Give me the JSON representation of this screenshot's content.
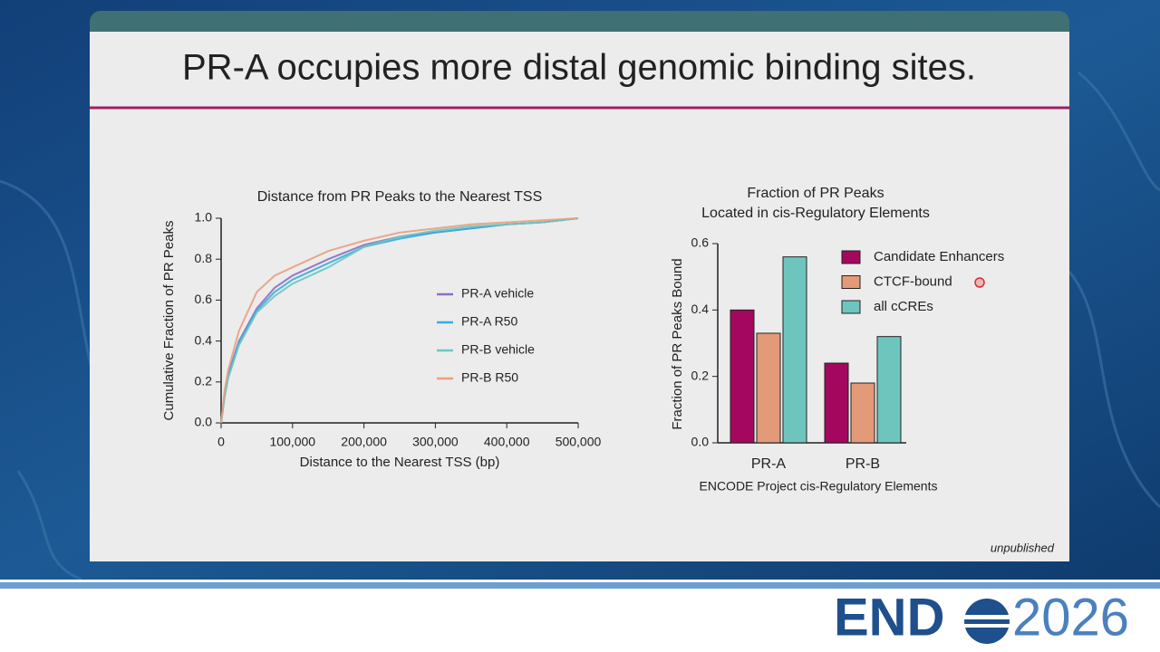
{
  "slide": {
    "title": "PR-A occupies more distal genomic binding sites.",
    "note": "unpublished"
  },
  "footer": {
    "logo_text": "END",
    "year": "2026"
  },
  "chart_data": [
    {
      "type": "line",
      "title": "Distance from PR Peaks to the Nearest TSS",
      "xlabel": "Distance to the Nearest TSS (bp)",
      "ylabel": "Cumulative Fraction of PR Peaks",
      "x": [
        0,
        5000,
        10000,
        25000,
        50000,
        75000,
        100000,
        150000,
        200000,
        250000,
        300000,
        350000,
        400000,
        450000,
        500000
      ],
      "series": [
        {
          "name": "PR-A vehicle",
          "color": "#8a6fc2",
          "values": [
            0,
            0.14,
            0.24,
            0.4,
            0.56,
            0.66,
            0.72,
            0.8,
            0.87,
            0.91,
            0.93,
            0.95,
            0.97,
            0.98,
            1.0
          ]
        },
        {
          "name": "PR-A R50",
          "color": "#35aedb",
          "values": [
            0,
            0.13,
            0.23,
            0.39,
            0.55,
            0.64,
            0.7,
            0.78,
            0.86,
            0.9,
            0.93,
            0.95,
            0.97,
            0.98,
            1.0
          ]
        },
        {
          "name": "PR-B vehicle",
          "color": "#6cc7c0",
          "values": [
            0,
            0.13,
            0.22,
            0.38,
            0.54,
            0.62,
            0.68,
            0.76,
            0.86,
            0.91,
            0.94,
            0.96,
            0.97,
            0.98,
            1.0
          ]
        },
        {
          "name": "PR-B R50",
          "color": "#e9a07f",
          "values": [
            0,
            0.16,
            0.26,
            0.45,
            0.64,
            0.72,
            0.76,
            0.84,
            0.89,
            0.93,
            0.95,
            0.97,
            0.98,
            0.99,
            1.0
          ]
        }
      ],
      "xlim": [
        0,
        500000
      ],
      "xticks": [
        0,
        {
          "value": 100000,
          "label": "100,000"
        },
        {
          "value": 200000,
          "label": "200,000"
        },
        {
          "value": 300000,
          "label": "300,000"
        },
        {
          "value": 400000,
          "label": "400,000"
        },
        {
          "value": 500000,
          "label": "500,000"
        }
      ],
      "ylim": [
        0,
        1
      ],
      "yticks": [
        {
          "value": 0,
          "label": "0.0"
        },
        0.2,
        0.4,
        0.6,
        0.8,
        {
          "value": 1,
          "label": "1.0"
        }
      ],
      "legend": "right"
    },
    {
      "type": "bar",
      "title": [
        "Fraction of  PR Peaks",
        "Located in cis-Regulatory Elements"
      ],
      "xlabel": "ENCODE Project cis-Regulatory Elements",
      "ylabel": "Fraction of PR Peaks Bound",
      "categories": [
        "PR-A",
        "PR-B"
      ],
      "series": [
        {
          "name": "Candidate Enhancers",
          "color": "#a3085e",
          "values": [
            0.4,
            0.24
          ]
        },
        {
          "name": "CTCF-bound",
          "color": "#e39a78",
          "values": [
            0.33,
            0.18
          ]
        },
        {
          "name": "all cCREs",
          "color": "#6ec5be",
          "values": [
            0.56,
            0.32
          ]
        }
      ],
      "ylim": [
        0,
        0.6
      ],
      "yticks": [
        {
          "value": 0,
          "label": "0.0"
        },
        0.2,
        0.4,
        0.6
      ],
      "legend": "upper right"
    }
  ]
}
